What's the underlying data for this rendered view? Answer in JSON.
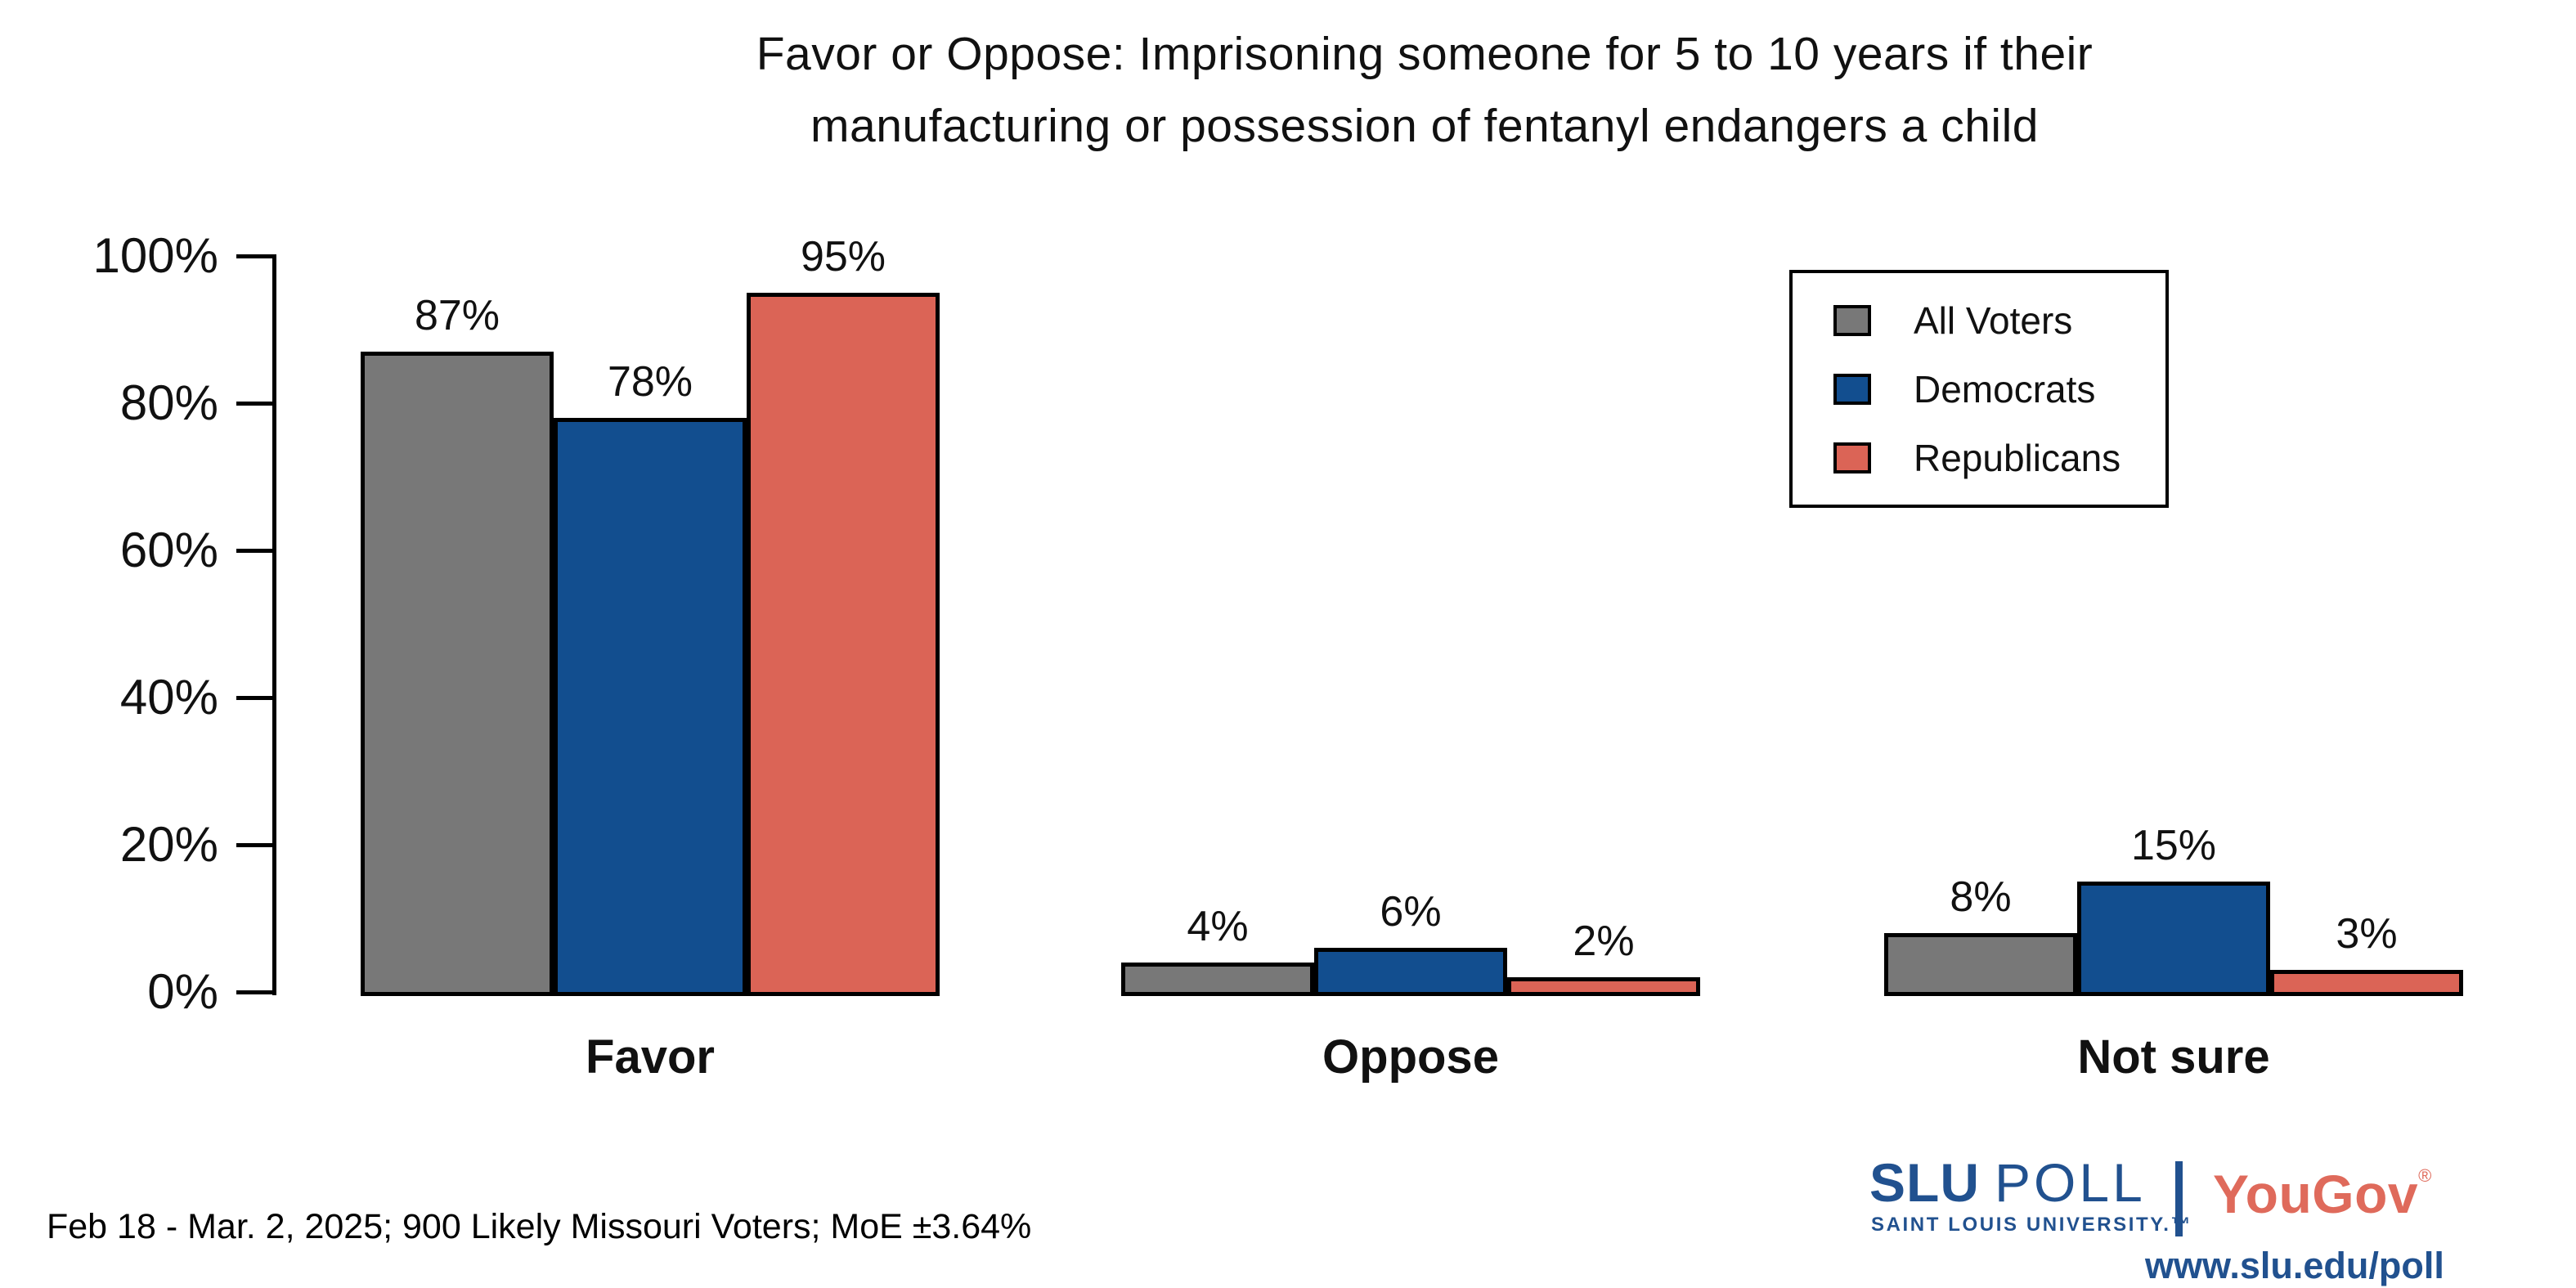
{
  "title": {
    "line1": "Favor or Oppose: Imprisoning someone for 5 to 10 years if their",
    "line2": "manufacturing or possession of fentanyl endangers a child"
  },
  "chart_data": {
    "type": "bar",
    "categories": [
      "Favor",
      "Oppose",
      "Not sure"
    ],
    "series": [
      {
        "name": "All Voters",
        "color": "#787878",
        "values": [
          87,
          4,
          8
        ],
        "labels": [
          "87%",
          "4%",
          "8%"
        ]
      },
      {
        "name": "Democrats",
        "color": "#124E8F",
        "values": [
          78,
          6,
          15
        ],
        "labels": [
          "78%",
          "6%",
          "15%"
        ]
      },
      {
        "name": "Republicans",
        "color": "#DB6456",
        "values": [
          95,
          2,
          3
        ],
        "labels": [
          "95%",
          "2%",
          "3%"
        ]
      }
    ],
    "ylabel": "",
    "xlabel": "",
    "ylim": [
      0,
      100
    ],
    "y_ticks": [
      {
        "value": 0,
        "label": "0%"
      },
      {
        "value": 20,
        "label": "20%"
      },
      {
        "value": 40,
        "label": "40%"
      },
      {
        "value": 60,
        "label": "60%"
      },
      {
        "value": 80,
        "label": "80%"
      },
      {
        "value": 100,
        "label": "100%"
      }
    ],
    "grid": false,
    "legend_position": "upper right",
    "bar_edge_color": "#000000"
  },
  "footer": {
    "note": "Feb 18 - Mar. 2, 2025; 900 Likely Missouri Voters; MoE ±3.64%"
  },
  "branding": {
    "slu": "SLU",
    "poll": "POLL",
    "university": "SAINT LOUIS UNIVERSITY.™",
    "divider": "|",
    "yougov": "YouGov",
    "registered": "®",
    "url": "www.slu.edu/poll"
  }
}
